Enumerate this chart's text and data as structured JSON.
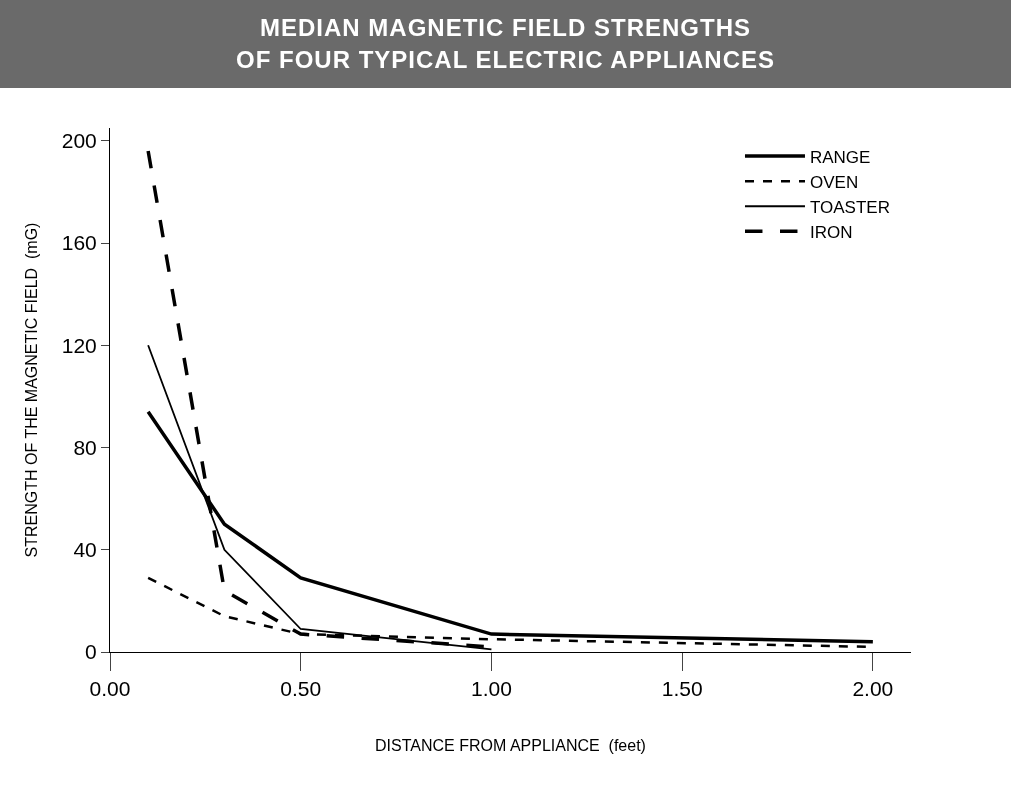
{
  "chart_data": {
    "type": "line",
    "title": "MEDIAN MAGNETIC FIELD STRENGTHS\nOF FOUR TYPICAL ELECTRIC APPLIANCES",
    "xlabel": "DISTANCE FROM APPLIANCE  (feet)",
    "ylabel": "STRENGTH OF THE MAGNETIC FIELD  (mG)",
    "x": [
      0.1,
      0.3,
      0.5,
      1.0,
      2.0
    ],
    "series": [
      {
        "name": "RANGE",
        "color": "#000000",
        "line_style": "solid",
        "values": [
          94,
          50,
          29,
          7,
          4
        ]
      },
      {
        "name": "OVEN",
        "color": "#000000",
        "line_style": "dotted",
        "values": [
          29,
          14,
          7,
          5,
          2
        ]
      },
      {
        "name": "TOASTER",
        "color": "#000000",
        "line_style": "solid",
        "values": [
          120,
          40,
          9,
          1,
          null
        ]
      },
      {
        "name": "IRON",
        "color": "#000000",
        "line_style": "dashed",
        "values": [
          196,
          24,
          7,
          2,
          null
        ]
      }
    ],
    "xlim": [
      0,
      2.1
    ],
    "xticks": [
      {
        "value": 0,
        "label": "0.00"
      },
      {
        "value": 0.5,
        "label": "0.50"
      },
      {
        "value": 1,
        "label": "1.00"
      },
      {
        "value": 1.5,
        "label": "1.50"
      },
      {
        "value": 2,
        "label": "2.00"
      }
    ],
    "ylim": [
      0,
      205
    ],
    "yticks": [
      0,
      40,
      80,
      120,
      160,
      200
    ],
    "grid": false,
    "legend": "top right",
    "marker": "none"
  }
}
